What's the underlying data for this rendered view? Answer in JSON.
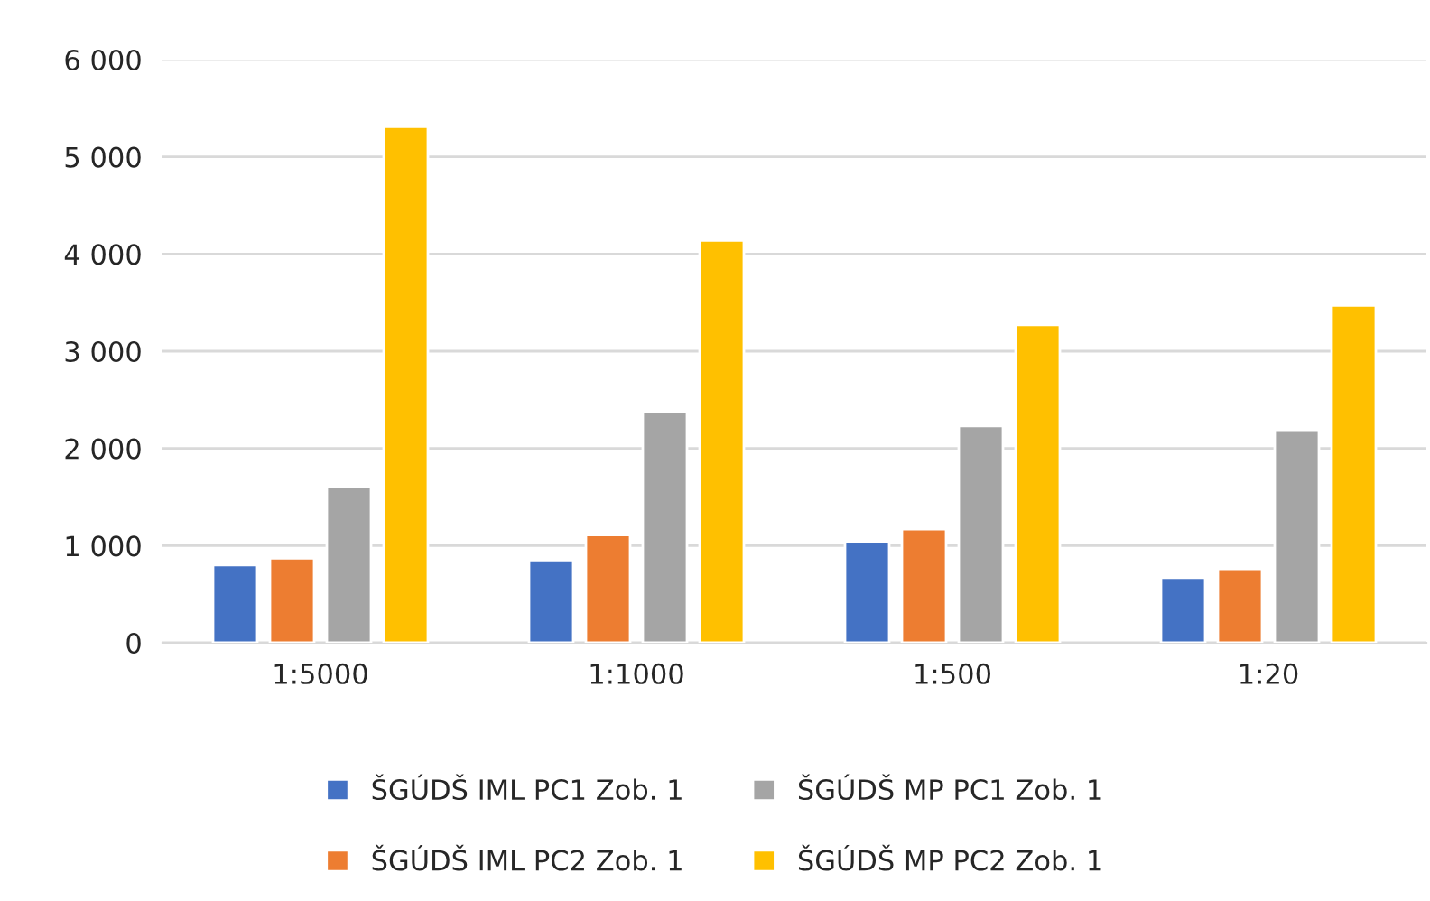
{
  "chart_data": {
    "type": "bar",
    "categories": [
      "1:5000",
      "1:1000",
      "1:500",
      "1:20"
    ],
    "series": [
      {
        "name": "ŠGÚDŠ IML PC1 Zob. 1",
        "color": "#4472c4",
        "values": [
          800,
          850,
          1040,
          670
        ]
      },
      {
        "name": "ŠGÚDŠ IML PC2 Zob. 1",
        "color": "#ed7d31",
        "values": [
          870,
          1110,
          1170,
          760
        ]
      },
      {
        "name": "ŠGÚDŠ MP PC1 Zob. 1",
        "color": "#a5a5a5",
        "values": [
          1600,
          2380,
          2230,
          2190
        ]
      },
      {
        "name": "ŠGÚDŠ MP PC2 Zob. 1",
        "color": "#ffc000",
        "values": [
          5310,
          4140,
          3270,
          3470
        ]
      }
    ],
    "ylim": [
      0,
      6000
    ],
    "yticks": [
      {
        "value": 0,
        "label": "0"
      },
      {
        "value": 1000,
        "label": "1 000"
      },
      {
        "value": 2000,
        "label": "2 000"
      },
      {
        "value": 3000,
        "label": "3 000"
      },
      {
        "value": 4000,
        "label": "4 000"
      },
      {
        "value": 5000,
        "label": "5 000"
      },
      {
        "value": 6000,
        "label": "6 000"
      }
    ],
    "grid": "y",
    "legend": "bottom"
  }
}
